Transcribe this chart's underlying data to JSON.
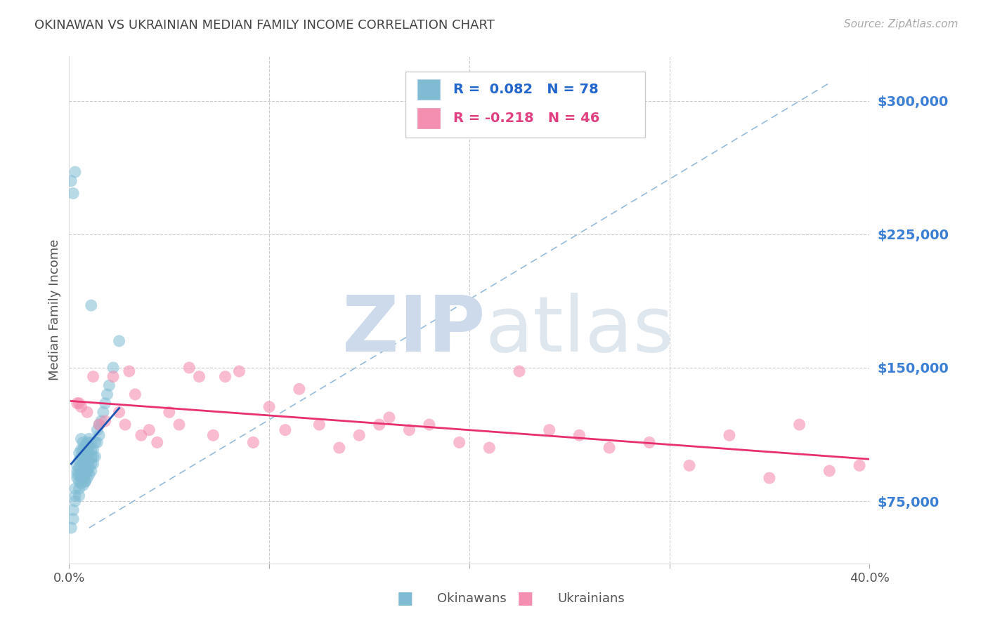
{
  "title": "OKINAWAN VS UKRAINIAN MEDIAN FAMILY INCOME CORRELATION CHART",
  "source": "Source: ZipAtlas.com",
  "ylabel": "Median Family Income",
  "xlim": [
    0.0,
    0.4
  ],
  "ylim": [
    40000,
    325000
  ],
  "yticks": [
    75000,
    150000,
    225000,
    300000
  ],
  "ytick_labels": [
    "$75,000",
    "$150,000",
    "$225,000",
    "$300,000"
  ],
  "okinawan_color": "#7fbcd4",
  "ukrainian_color": "#f48fb1",
  "okinawan_R": 0.082,
  "okinawan_N": 78,
  "ukrainian_R": -0.218,
  "ukrainian_N": 46,
  "title_color": "#444444",
  "source_color": "#aaaaaa",
  "axis_label_color": "#555555",
  "ytick_color": "#3a7fd4",
  "grid_color": "#cccccc",
  "watermark_zip": "ZIP",
  "watermark_atlas": "atlas",
  "watermark_color": "#ccdaec",
  "trend_blue_color": "#1a55b4",
  "trend_pink_color": "#e83070",
  "trend_dashed_color": "#8ab4d8",
  "okinawan_x": [
    0.001,
    0.002,
    0.002,
    0.003,
    0.003,
    0.003,
    0.004,
    0.004,
    0.004,
    0.004,
    0.005,
    0.005,
    0.005,
    0.005,
    0.005,
    0.005,
    0.005,
    0.006,
    0.006,
    0.006,
    0.006,
    0.006,
    0.006,
    0.006,
    0.007,
    0.007,
    0.007,
    0.007,
    0.007,
    0.007,
    0.007,
    0.007,
    0.007,
    0.008,
    0.008,
    0.008,
    0.008,
    0.008,
    0.008,
    0.008,
    0.009,
    0.009,
    0.009,
    0.009,
    0.009,
    0.009,
    0.009,
    0.01,
    0.01,
    0.01,
    0.01,
    0.01,
    0.01,
    0.011,
    0.011,
    0.011,
    0.011,
    0.011,
    0.012,
    0.012,
    0.012,
    0.013,
    0.013,
    0.014,
    0.014,
    0.015,
    0.015,
    0.016,
    0.017,
    0.018,
    0.019,
    0.02,
    0.022,
    0.025,
    0.003,
    0.001,
    0.002,
    0.011
  ],
  "okinawan_y": [
    60000,
    65000,
    70000,
    78000,
    82000,
    75000,
    90000,
    95000,
    88000,
    92000,
    82000,
    86000,
    90000,
    94000,
    98000,
    102000,
    78000,
    85000,
    90000,
    95000,
    100000,
    104000,
    88000,
    110000,
    84000,
    88000,
    92000,
    96000,
    100000,
    104000,
    108000,
    88000,
    96000,
    86000,
    90000,
    94000,
    98000,
    102000,
    106000,
    86000,
    88000,
    92000,
    96000,
    100000,
    104000,
    108000,
    92000,
    90000,
    94000,
    98000,
    102000,
    106000,
    110000,
    92000,
    96000,
    100000,
    104000,
    108000,
    96000,
    100000,
    104000,
    100000,
    108000,
    108000,
    115000,
    112000,
    118000,
    120000,
    125000,
    130000,
    135000,
    140000,
    150000,
    165000,
    260000,
    255000,
    248000,
    185000
  ],
  "ukrainian_x": [
    0.004,
    0.006,
    0.009,
    0.012,
    0.015,
    0.018,
    0.022,
    0.025,
    0.028,
    0.03,
    0.033,
    0.036,
    0.04,
    0.044,
    0.05,
    0.055,
    0.06,
    0.065,
    0.072,
    0.078,
    0.085,
    0.092,
    0.1,
    0.108,
    0.115,
    0.125,
    0.135,
    0.145,
    0.155,
    0.16,
    0.17,
    0.18,
    0.195,
    0.21,
    0.225,
    0.24,
    0.255,
    0.27,
    0.29,
    0.31,
    0.33,
    0.35,
    0.365,
    0.38,
    0.395,
    0.005
  ],
  "ukrainian_y": [
    130000,
    128000,
    125000,
    145000,
    118000,
    120000,
    145000,
    125000,
    118000,
    148000,
    135000,
    112000,
    115000,
    108000,
    125000,
    118000,
    150000,
    145000,
    112000,
    145000,
    148000,
    108000,
    128000,
    115000,
    138000,
    118000,
    105000,
    112000,
    118000,
    122000,
    115000,
    118000,
    108000,
    105000,
    148000,
    115000,
    112000,
    105000,
    108000,
    95000,
    112000,
    88000,
    118000,
    92000,
    95000,
    130000
  ]
}
